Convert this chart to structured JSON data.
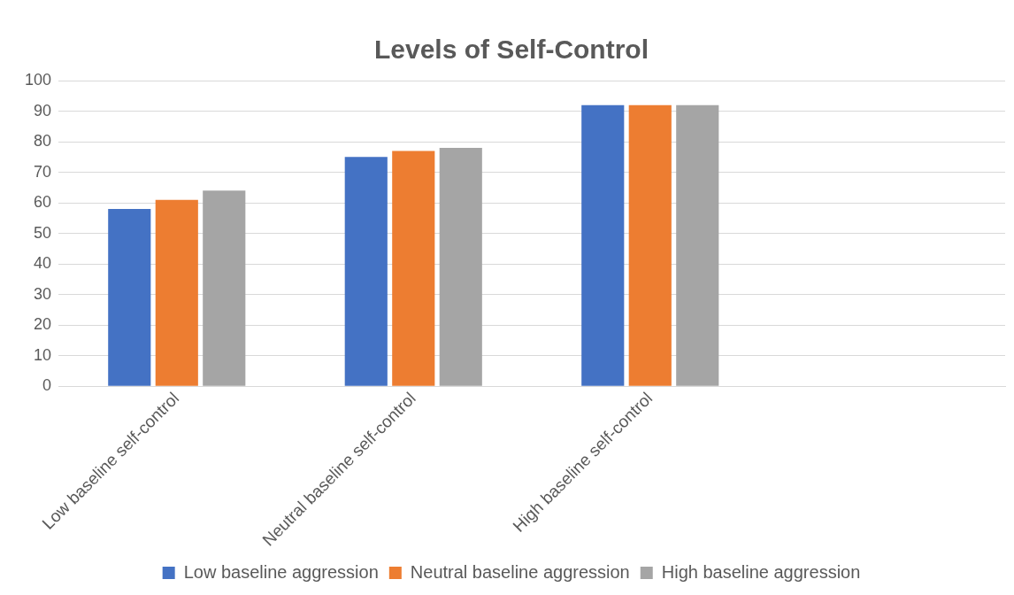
{
  "chart_data": {
    "type": "bar",
    "title": "Levels of Self-Control",
    "categories": [
      "Low baseline self-control",
      "Neutral baseline self-control",
      "High baseline self-control",
      null
    ],
    "series": [
      {
        "name": "Low baseline aggression",
        "color": "#4472c4",
        "values": [
          58,
          75,
          92,
          null
        ]
      },
      {
        "name": "Neutral baseline aggression",
        "color": "#ed7d31",
        "values": [
          61,
          77,
          92,
          null
        ]
      },
      {
        "name": "High baseline aggression",
        "color": "#a5a5a5",
        "values": [
          64,
          78,
          92,
          null
        ]
      }
    ],
    "ylim": [
      0,
      100
    ],
    "yticks": [
      0,
      10,
      20,
      30,
      40,
      50,
      60,
      70,
      80,
      90,
      100
    ],
    "grid": "y",
    "legend": "bottom"
  }
}
